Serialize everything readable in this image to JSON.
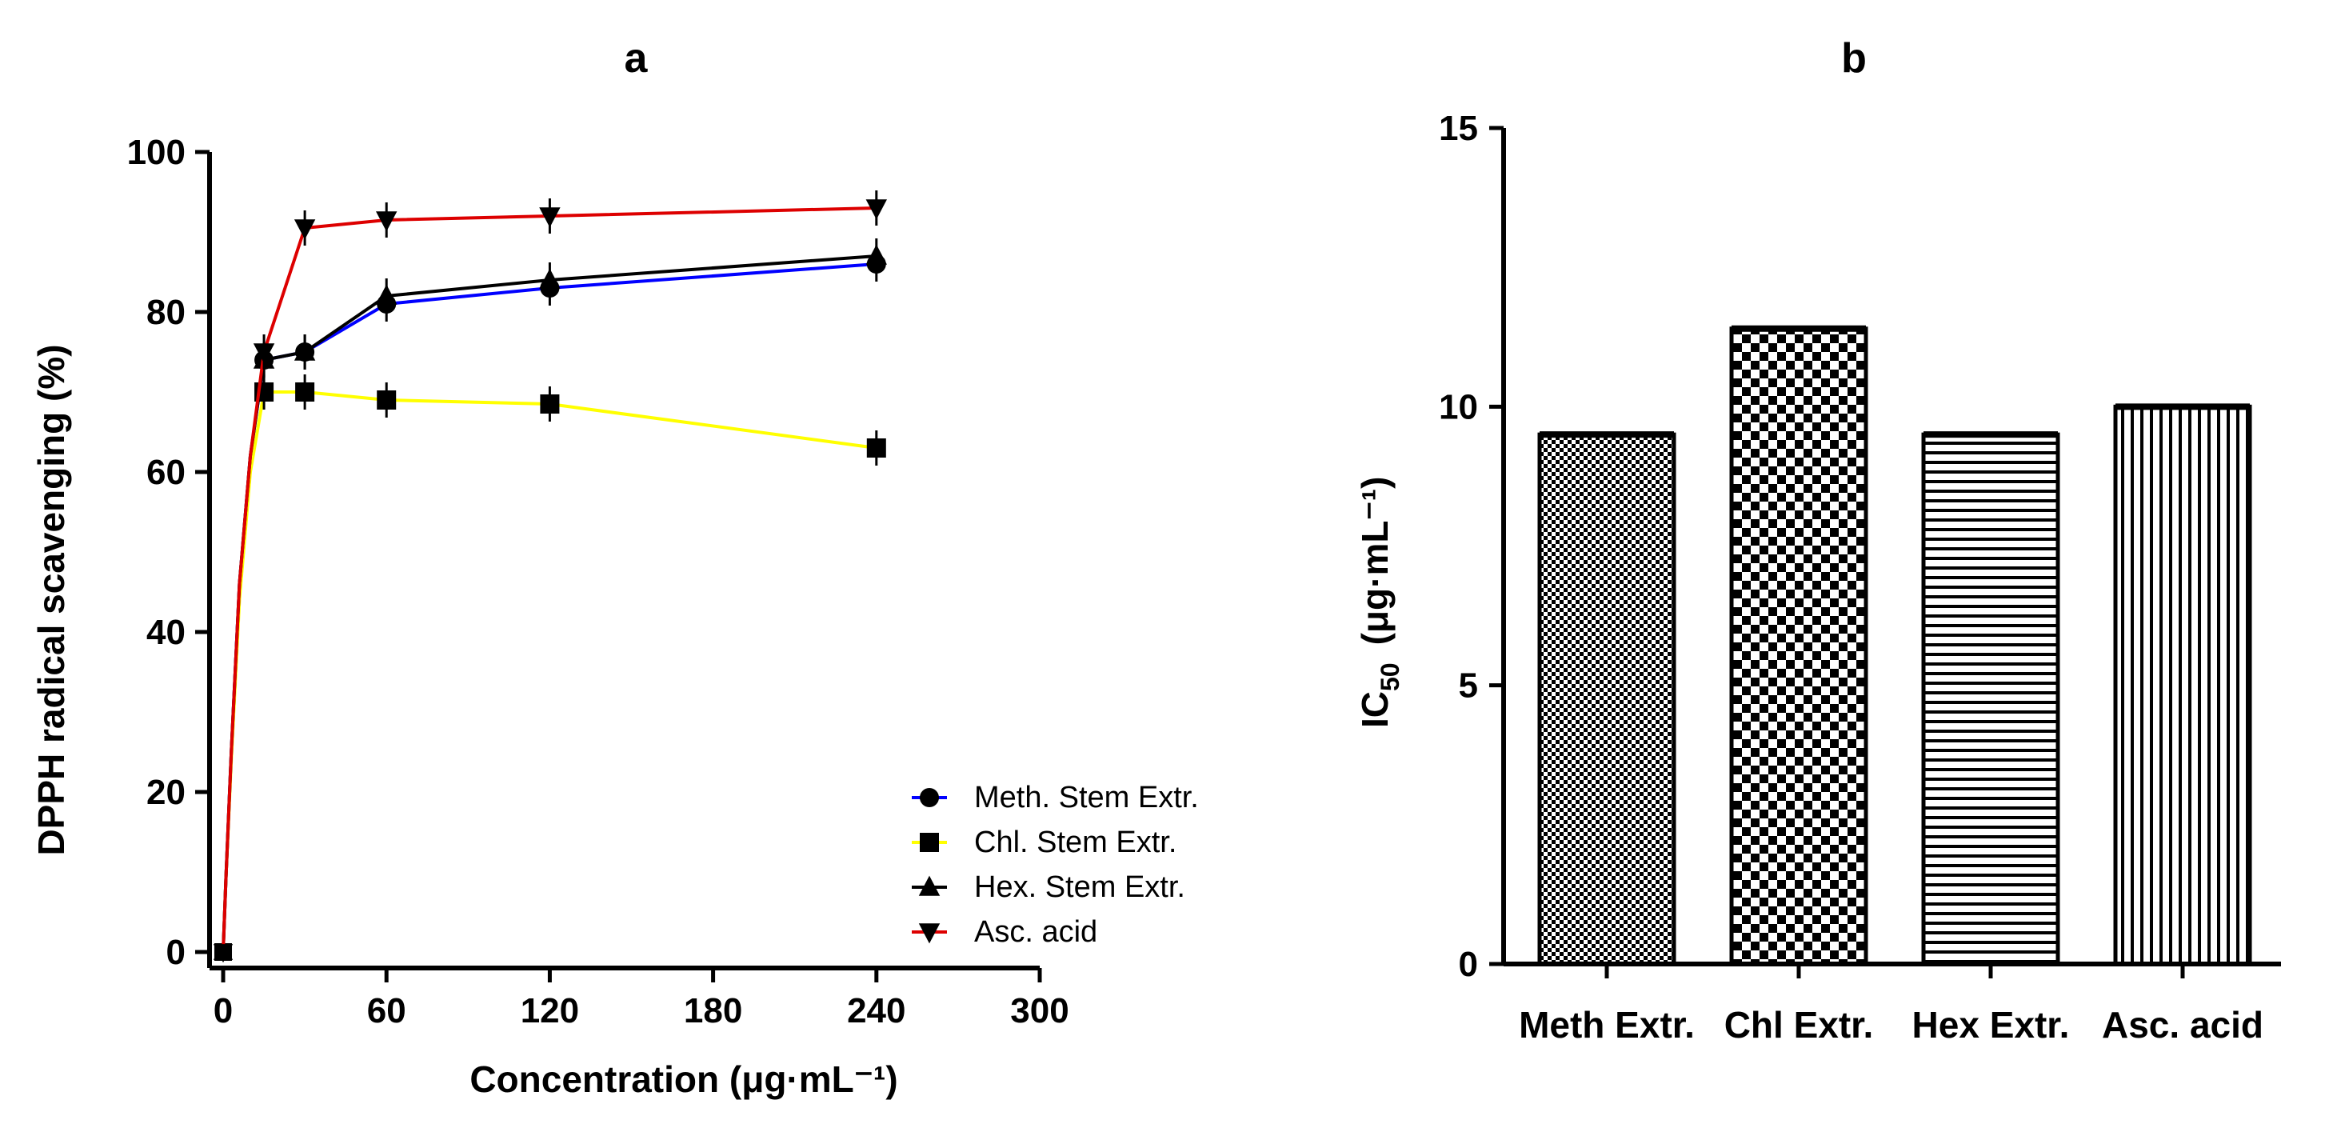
{
  "colors": {
    "meth": "#0000ff",
    "chl": "#ffff00",
    "hex": "#000000",
    "asc": "#dd0000"
  },
  "chart_data": [
    {
      "type": "line",
      "panel": "a",
      "xlabel": "Concentration (μg·mL⁻¹)",
      "ylabel": "DPPH radical scavenging (%)",
      "xlim": [
        -5,
        300
      ],
      "ylim": [
        -2,
        100
      ],
      "xticks": [
        "0",
        "60",
        "120",
        "180",
        "240",
        "300"
      ],
      "xtick_values": [
        0,
        60,
        120,
        180,
        240,
        300
      ],
      "yticks": [
        "0",
        "20",
        "40",
        "60",
        "80",
        "100"
      ],
      "ytick_values": [
        0,
        20,
        40,
        60,
        80,
        100
      ],
      "legend_position": "bottom-right",
      "series": [
        {
          "name": "Meth. Stem Extr.",
          "color_key": "meth",
          "marker": "circle",
          "x": [
            0,
            1,
            3,
            6,
            10,
            15,
            30,
            60,
            120,
            240
          ],
          "y": [
            0,
            9,
            25,
            46,
            62,
            74,
            75,
            81,
            83,
            86
          ]
        },
        {
          "name": "Chl. Stem Extr.",
          "color_key": "chl",
          "marker": "square",
          "x": [
            0,
            1,
            3,
            6,
            10,
            15,
            30,
            60,
            120,
            240
          ],
          "y": [
            0,
            9,
            24,
            44,
            60,
            70,
            70,
            69,
            68.5,
            63
          ]
        },
        {
          "name": "Hex. Stem Extr.",
          "color_key": "hex",
          "marker": "triangle-up",
          "x": [
            0,
            1,
            3,
            6,
            10,
            15,
            30,
            60,
            120,
            240
          ],
          "y": [
            0,
            9,
            25,
            46,
            62,
            74,
            75,
            82,
            84,
            87
          ]
        },
        {
          "name": "Asc. acid",
          "color_key": "asc",
          "marker": "triangle-down",
          "x": [
            0,
            1,
            3,
            6,
            10,
            15,
            30,
            60,
            120,
            240
          ],
          "y": [
            0,
            9,
            25,
            46,
            62,
            75,
            90.5,
            91.5,
            92,
            93
          ]
        }
      ]
    },
    {
      "type": "bar",
      "panel": "b",
      "ylabel_main": "IC",
      "ylabel_sub": "50",
      "ylabel_unit": "(μg·mL⁻¹)",
      "ylim": [
        0,
        15
      ],
      "yticks": [
        "0",
        "5",
        "10",
        "15"
      ],
      "ytick_values": [
        0,
        5,
        10,
        15
      ],
      "categories": [
        "Meth Extr.",
        "Chl Extr.",
        "Hex Extr.",
        "Asc. acid"
      ],
      "values": [
        9.5,
        11.4,
        9.5,
        10
      ],
      "patterns": [
        "dots",
        "checker",
        "horizontal",
        "vertical"
      ]
    }
  ]
}
